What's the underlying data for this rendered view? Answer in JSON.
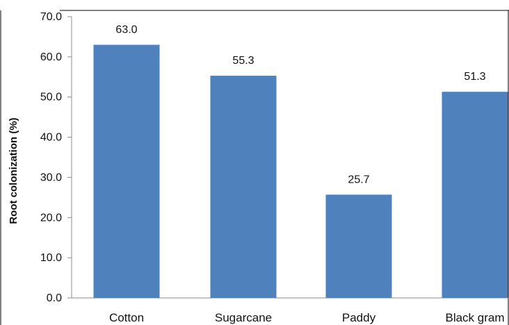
{
  "chart_data": {
    "type": "bar",
    "title": "",
    "xlabel": "",
    "ylabel": "Root colonization (%)",
    "categories": [
      "Cotton",
      "Sugarcane",
      "Paddy",
      "Black gram"
    ],
    "values": [
      63.0,
      55.3,
      25.7,
      51.3
    ],
    "data_labels": [
      "63.0",
      "55.3",
      "25.7",
      "51.3"
    ],
    "ylim": [
      0,
      70
    ],
    "yticks": [
      "0.0",
      "10.0",
      "20.0",
      "30.0",
      "40.0",
      "50.0",
      "60.0",
      "70.0"
    ],
    "grid": false,
    "legend": "none",
    "colors": {
      "bar": "#4f81bd",
      "axis": "#8c8c8c",
      "frame": "#000000"
    }
  }
}
